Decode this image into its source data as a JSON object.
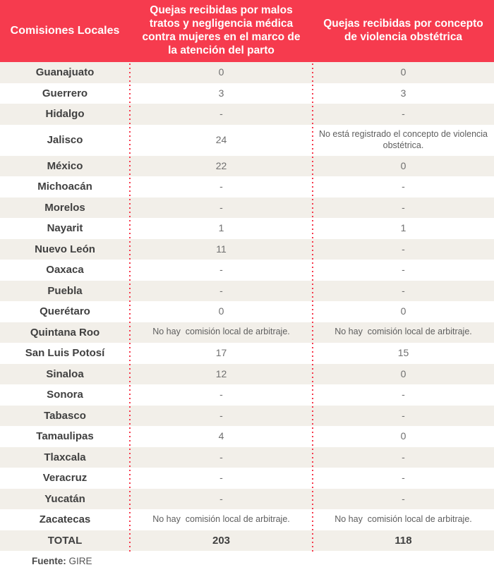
{
  "chart_data": {
    "type": "table",
    "columns": [
      "Comisiones Locales",
      "Quejas recibidas por malos tratos y negligencia médica contra mujeres en el marco de la atención del parto",
      "Quejas recibidas por concepto de violencia obstétrica"
    ],
    "rows": [
      [
        "Guanajuato",
        "0",
        "0"
      ],
      [
        "Guerrero",
        "3",
        "3"
      ],
      [
        "Hidalgo",
        "-",
        "-"
      ],
      [
        "Jalisco",
        "24",
        "No está registrado el concepto de violencia obstétrica."
      ],
      [
        "México",
        "22",
        "0"
      ],
      [
        "Michoacán",
        "-",
        "-"
      ],
      [
        "Morelos",
        "-",
        "-"
      ],
      [
        "Nayarit",
        "1",
        "1"
      ],
      [
        "Nuevo León",
        "11",
        "-"
      ],
      [
        "Oaxaca",
        "-",
        "-"
      ],
      [
        "Puebla",
        "-",
        "-"
      ],
      [
        "Querétaro",
        "0",
        "0"
      ],
      [
        "Quintana Roo",
        "No hay  comisión local de arbitraje.",
        "No hay  comisión local de arbitraje."
      ],
      [
        "San Luis Potosí",
        "17",
        "15"
      ],
      [
        "Sinaloa",
        "12",
        "0"
      ],
      [
        "Sonora",
        "-",
        "-"
      ],
      [
        "Tabasco",
        "-",
        "-"
      ],
      [
        "Tamaulipas",
        "4",
        "0"
      ],
      [
        "Tlaxcala",
        "-",
        "-"
      ],
      [
        "Veracruz",
        "-",
        "-"
      ],
      [
        "Yucatán",
        "-",
        "-"
      ],
      [
        "Zacatecas",
        "No hay  comisión local de arbitraje.",
        "No hay  comisión local de arbitraje."
      ]
    ],
    "total_row": [
      "TOTAL",
      "203",
      "118"
    ],
    "layout_hints": {
      "striped": true,
      "first_row_striped": true,
      "column_dividers": "red dotted vertical lines"
    }
  },
  "footer": {
    "label": "Fuente:",
    "value": "GIRE"
  },
  "colors": {
    "header": "#f63b4e",
    "stripe": "#f2efe9",
    "dots": "#f63b4e",
    "name_text": "#404040",
    "value_text": "#6f6f6f"
  }
}
